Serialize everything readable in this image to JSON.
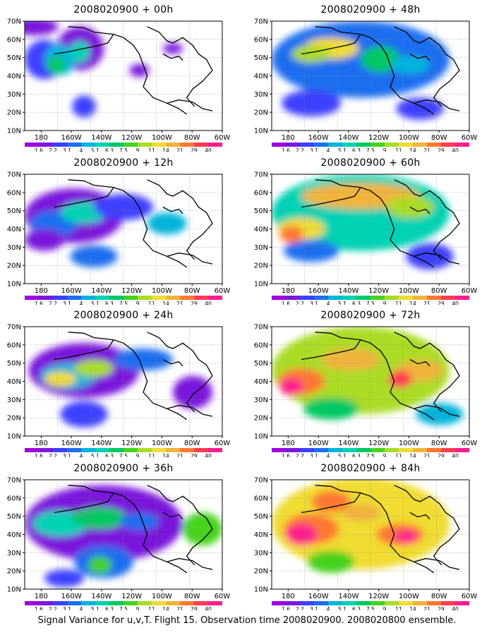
{
  "chart_data": {
    "type": "heatmap",
    "caption": "Signal Variance for u,v,T. Flight 15. Observation time 2008020900. 2008020800 ensemble.",
    "x_tick_labels": [
      "180",
      "160W",
      "140W",
      "120W",
      "100W",
      "80W",
      "60W"
    ],
    "y_tick_labels": [
      "10N",
      "20N",
      "30N",
      "40N",
      "50N",
      "60N",
      "70N"
    ],
    "color_scale": {
      "levels": [
        "1.6",
        "2.2",
        "3.1",
        "4",
        "5.1",
        "6.3",
        "7.5",
        "9",
        "11",
        "14",
        "21",
        "29",
        "40"
      ],
      "colors": [
        "#a000e0",
        "#7a18dc",
        "#3c40ff",
        "#1e6ef0",
        "#00b4dc",
        "#00d2b4",
        "#00c864",
        "#46d21e",
        "#aadc28",
        "#f0dc32",
        "#f0b43c",
        "#ff7832",
        "#ff3c50",
        "#ff1e8c"
      ]
    },
    "grid": true,
    "panels": [
      {
        "title": "2008020900 + 00h",
        "intensity": 1
      },
      {
        "title": "2008020900 + 12h",
        "intensity": 2
      },
      {
        "title": "2008020900 + 24h",
        "intensity": 3
      },
      {
        "title": "2008020900 + 36h",
        "intensity": 4
      },
      {
        "title": "2008020900 + 48h",
        "intensity": 4
      },
      {
        "title": "2008020900 + 60h",
        "intensity": 5
      },
      {
        "title": "2008020900 + 72h",
        "intensity": 6
      },
      {
        "title": "2008020900 + 84h",
        "intensity": 7
      }
    ]
  }
}
